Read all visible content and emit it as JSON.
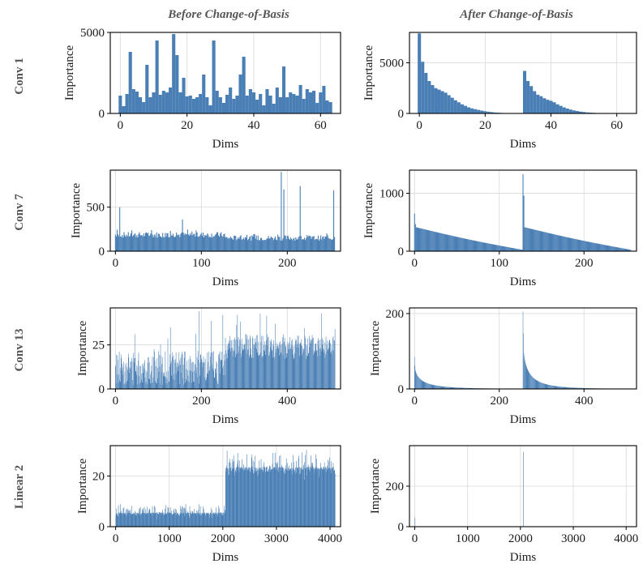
{
  "column_titles": [
    "Before Change-of-Basis",
    "After Change-of-Basis"
  ],
  "row_titles": [
    "Conv 1",
    "Conv 7",
    "Conv 13",
    "Linear 2"
  ],
  "colors": {
    "bar": "#4a7fb5",
    "grid": "#d9d9d9",
    "title": "#555555"
  },
  "chart_data": [
    {
      "id": "conv1-before",
      "type": "bar",
      "title": "",
      "xlabel": "Dims",
      "ylabel": "Importance",
      "xlim": [
        -3,
        66
      ],
      "ylim": [
        0,
        5000
      ],
      "xticks": [
        0,
        20,
        40,
        60
      ],
      "yticks": [
        0,
        5000
      ],
      "n": 64,
      "generator": "explicit",
      "values": [
        1100,
        450,
        1200,
        3800,
        1500,
        1350,
        1000,
        700,
        3000,
        1000,
        1300,
        4500,
        1150,
        1400,
        1300,
        1600,
        4900,
        3600,
        1300,
        2200,
        1050,
        1100,
        900,
        1000,
        1200,
        2400,
        1000,
        500,
        4500,
        1400,
        1000,
        650,
        1150,
        1600,
        900,
        1100,
        2400,
        3500,
        1100,
        1500,
        1300,
        850,
        1200,
        500,
        1500,
        1100,
        600,
        1600,
        1000,
        2900,
        1000,
        1300,
        1200,
        1100,
        1750,
        900,
        1500,
        1300,
        1400,
        650,
        1300,
        1700,
        800,
        700
      ]
    },
    {
      "id": "conv1-after",
      "type": "bar",
      "title": "",
      "xlabel": "Dims",
      "ylabel": "Importance",
      "xlim": [
        -3,
        66
      ],
      "ylim": [
        0,
        8000
      ],
      "xticks": [
        0,
        20,
        40,
        60
      ],
      "yticks": [
        0,
        5000
      ],
      "n": 64,
      "generator": "explicit",
      "values": [
        7900,
        5100,
        4000,
        3200,
        2800,
        2500,
        2350,
        2200,
        2050,
        1800,
        1550,
        1300,
        1100,
        900,
        750,
        600,
        500,
        420,
        350,
        280,
        220,
        170,
        130,
        90,
        70,
        50,
        40,
        30,
        20,
        15,
        10,
        8,
        4200,
        3200,
        2700,
        2200,
        1850,
        1700,
        1500,
        1350,
        1250,
        1100,
        900,
        750,
        600,
        480,
        380,
        300,
        240,
        180,
        140,
        100,
        80,
        60,
        45,
        35,
        25,
        20,
        15,
        10,
        8,
        6,
        5,
        4
      ]
    },
    {
      "id": "conv7-before",
      "type": "bar",
      "title": "",
      "xlabel": "Dims",
      "ylabel": "Importance",
      "xlim": [
        -6,
        262
      ],
      "ylim": [
        0,
        920
      ],
      "xticks": [
        0,
        100,
        200
      ],
      "yticks": [
        0,
        500
      ],
      "n": 256,
      "generator": "noise",
      "seed": 7,
      "segments": [
        {
          "from": 0,
          "to": 127,
          "base": 185,
          "amp": 55
        },
        {
          "from": 128,
          "to": 255,
          "base": 150,
          "amp": 50
        }
      ],
      "spikes": [
        {
          "i": 5,
          "v": 500
        },
        {
          "i": 78,
          "v": 360
        },
        {
          "i": 193,
          "v": 900
        },
        {
          "i": 196,
          "v": 700
        },
        {
          "i": 215,
          "v": 740
        },
        {
          "i": 254,
          "v": 690
        }
      ]
    },
    {
      "id": "conv7-after",
      "type": "bar",
      "title": "",
      "xlabel": "Dims",
      "ylabel": "Importance",
      "xlim": [
        -6,
        262
      ],
      "ylim": [
        0,
        1400
      ],
      "xticks": [
        0,
        100,
        200
      ],
      "yticks": [
        0,
        1000
      ],
      "n": 256,
      "generator": "decay",
      "segments": [
        {
          "from": 0,
          "to": 127,
          "peak": 650,
          "start": 420,
          "end": 25,
          "shape": "linear"
        },
        {
          "from": 128,
          "to": 255,
          "peak": 1330,
          "start": 420,
          "end": 25,
          "shape": "linear"
        }
      ]
    },
    {
      "id": "conv13-before",
      "type": "bar",
      "title": "",
      "xlabel": "Dims",
      "ylabel": "Importance",
      "xlim": [
        -12,
        524
      ],
      "ylim": [
        0,
        46
      ],
      "xticks": [
        0,
        200,
        400
      ],
      "yticks": [
        0,
        25
      ],
      "n": 512,
      "generator": "noise",
      "seed": 13,
      "segments": [
        {
          "from": 0,
          "to": 255,
          "base": 12,
          "amp": 16
        },
        {
          "from": 256,
          "to": 511,
          "base": 24,
          "amp": 12
        }
      ],
      "spikes": [
        {
          "i": 195,
          "v": 44
        },
        {
          "i": 250,
          "v": 42
        },
        {
          "i": 480,
          "v": 43
        }
      ]
    },
    {
      "id": "conv13-after",
      "type": "bar",
      "title": "",
      "xlabel": "Dims",
      "ylabel": "Importance",
      "xlim": [
        -12,
        524
      ],
      "ylim": [
        0,
        215
      ],
      "xticks": [
        0,
        200,
        400
      ],
      "yticks": [
        0,
        200
      ],
      "n": 512,
      "generator": "decay",
      "segments": [
        {
          "from": 0,
          "to": 255,
          "peak": 85,
          "start": 70,
          "end": 0.5,
          "shape": "exp"
        },
        {
          "from": 256,
          "to": 511,
          "peak": 205,
          "start": 140,
          "end": 0.5,
          "shape": "exp"
        }
      ]
    },
    {
      "id": "linear2-before",
      "type": "bar",
      "title": "",
      "xlabel": "Dims",
      "ylabel": "Importance",
      "xlim": [
        -100,
        4196
      ],
      "ylim": [
        0,
        32
      ],
      "xticks": [
        0,
        1000,
        2000,
        3000,
        4000
      ],
      "yticks": [
        0,
        20
      ],
      "n": 4096,
      "bins": 600,
      "generator": "noise",
      "seed": 2,
      "segments": [
        {
          "from": 0,
          "to": 2047,
          "base": 3.5,
          "amp": 3.5
        },
        {
          "from": 2048,
          "to": 4095,
          "base": 20,
          "amp": 6
        }
      ],
      "spikes": []
    },
    {
      "id": "linear2-after",
      "type": "bar",
      "title": "",
      "xlabel": "Dims",
      "ylabel": "Importance",
      "xlim": [
        -100,
        4196
      ],
      "ylim": [
        0,
        400
      ],
      "xticks": [
        0,
        1000,
        2000,
        3000,
        4000
      ],
      "yticks": [
        0,
        200
      ],
      "n": 4096,
      "bins": 600,
      "generator": "spikes-only",
      "spikes": [
        {
          "i": 0,
          "v": 45
        },
        {
          "i": 2048,
          "v": 370
        }
      ]
    }
  ]
}
